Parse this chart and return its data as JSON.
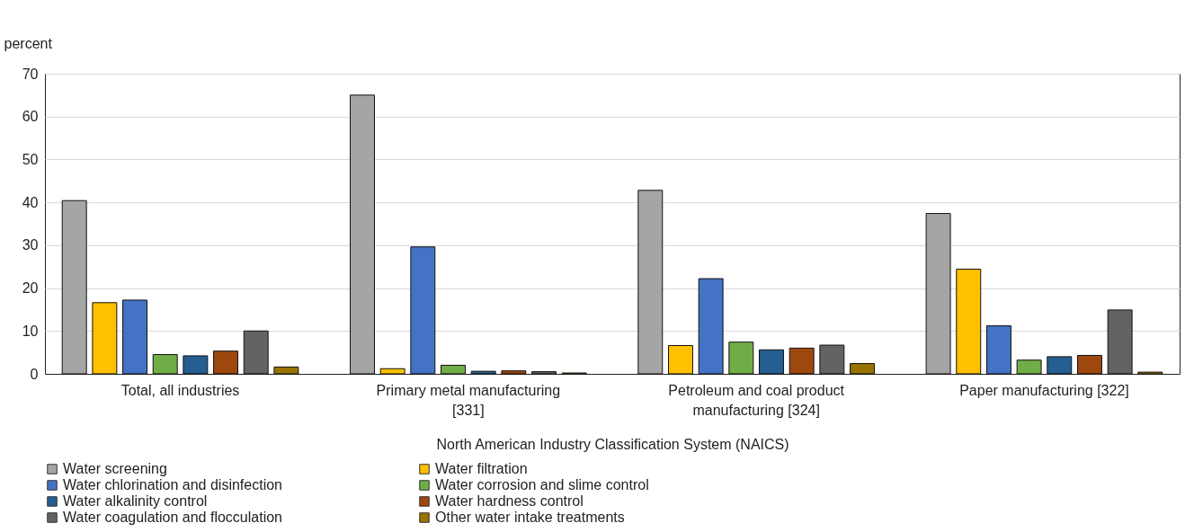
{
  "chart_data": {
    "type": "bar",
    "ylabel": "percent",
    "xlabel": "North American Industry Classification System (NAICS)",
    "categories": [
      "Total, all industries",
      "Primary metal manufacturing\n[331]",
      "Petroleum and coal product\nmanufacturing      [324]",
      "Paper manufacturing   [322]"
    ],
    "series": [
      {
        "name": "Water screening",
        "color": "#a5a5a5",
        "values": [
          40.4,
          65.0,
          42.8,
          37.4
        ]
      },
      {
        "name": "Water filtration",
        "color": "#ffc000",
        "values": [
          16.6,
          1.2,
          6.6,
          24.4
        ]
      },
      {
        "name": "Water chlorination and disinfection",
        "color": "#4472c4",
        "values": [
          17.2,
          29.6,
          22.2,
          11.2
        ]
      },
      {
        "name": "Water corrosion and slime control",
        "color": "#70ad47",
        "values": [
          4.5,
          2.0,
          7.4,
          3.2
        ]
      },
      {
        "name": "Water alkalinity control",
        "color": "#255e91",
        "values": [
          4.2,
          0.6,
          5.6,
          4.0
        ]
      },
      {
        "name": "Water hardness control",
        "color": "#9e480e",
        "values": [
          5.3,
          0.7,
          6.0,
          4.3
        ]
      },
      {
        "name": "Water coagulation and flocculation",
        "color": "#636363",
        "values": [
          10.0,
          0.5,
          6.7,
          14.9
        ]
      },
      {
        "name": "Other water intake treatments",
        "color": "#997300",
        "values": [
          1.6,
          0.2,
          2.4,
          0.4
        ]
      }
    ],
    "ylim": [
      0,
      70
    ],
    "yticks": [
      0,
      10,
      20,
      30,
      40,
      50,
      60,
      70
    ],
    "grid": "y",
    "legend": "bottom"
  }
}
